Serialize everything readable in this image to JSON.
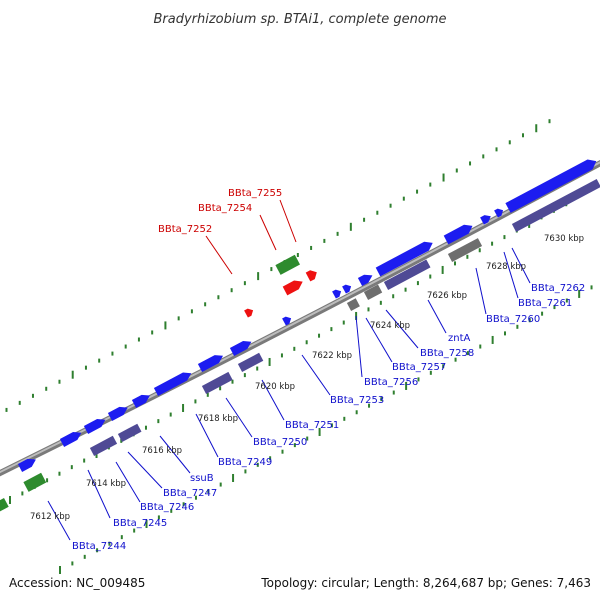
{
  "title": "Bradyrhizobium sp. BTAi1, complete genome",
  "footer": {
    "accession": "Accession: NC_009485",
    "summary": "Topology: circular; Length: 8,264,687 bp; Genes: 7,463"
  },
  "colors": {
    "cds_forward": "#1c1cf0",
    "cds_reverse": "#4f4a95",
    "rna": "#2e8b2e",
    "highlight": "#ee1111",
    "pseudogene": "#6e6e6e",
    "backbone": "#9a9a9a",
    "ticks": "#2f7f2f",
    "label_blue": "#1010cc",
    "label_red": "#cc0000"
  },
  "kbp_labels": [
    "7612 kbp",
    "7614 kbp",
    "7616 kbp",
    "7618 kbp",
    "7620 kbp",
    "7622 kbp",
    "7624 kbp",
    "7626 kbp",
    "7628 kbp",
    "7630 kbp"
  ],
  "gene_labels": [
    {
      "name": "BBta_7244",
      "color": "label_blue"
    },
    {
      "name": "BBta_7245",
      "color": "label_blue"
    },
    {
      "name": "BBta_7246",
      "color": "label_blue"
    },
    {
      "name": "BBta_7247",
      "color": "label_blue"
    },
    {
      "name": "ssuB",
      "color": "label_blue"
    },
    {
      "name": "BBta_7249",
      "color": "label_blue"
    },
    {
      "name": "BBta_7250",
      "color": "label_blue"
    },
    {
      "name": "BBta_7251",
      "color": "label_blue"
    },
    {
      "name": "BBta_7253",
      "color": "label_blue"
    },
    {
      "name": "BBta_7256",
      "color": "label_blue"
    },
    {
      "name": "BBta_7257",
      "color": "label_blue"
    },
    {
      "name": "BBta_7258",
      "color": "label_blue"
    },
    {
      "name": "zntA",
      "color": "label_blue"
    },
    {
      "name": "BBta_7260",
      "color": "label_blue"
    },
    {
      "name": "BBta_7261",
      "color": "label_blue"
    },
    {
      "name": "BBta_7262",
      "color": "label_blue"
    },
    {
      "name": "BBta_7252",
      "color": "label_red"
    },
    {
      "name": "BBta_7254",
      "color": "label_red"
    },
    {
      "name": "BBta_7255",
      "color": "label_red"
    }
  ]
}
